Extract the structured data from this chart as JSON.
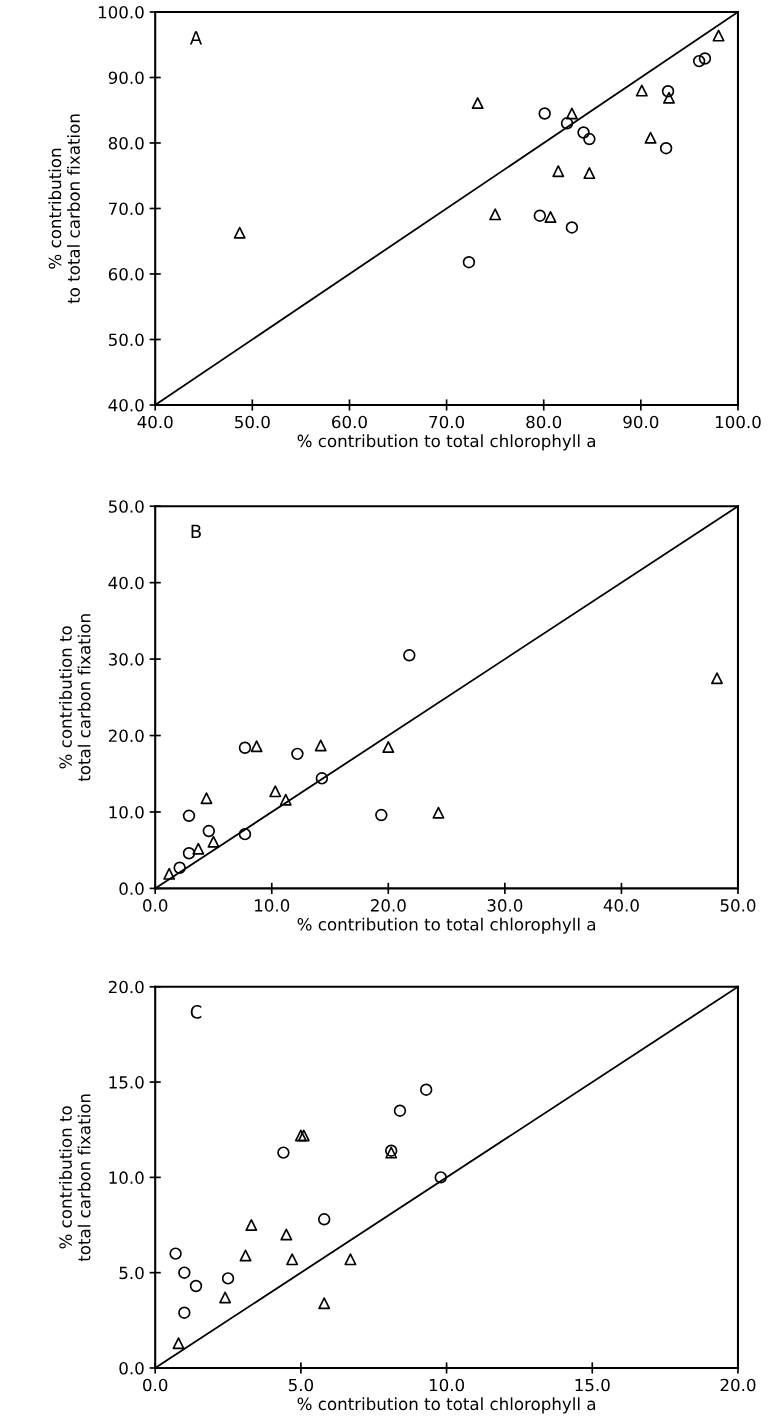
{
  "chart_data": [
    {
      "type": "scatter",
      "xlabel": "% contribution to total chlorophyll a",
      "ylabel": "% contribution\nto total carbon fixation",
      "annotations": [
        "A"
      ],
      "grid": false,
      "xlim": [
        40,
        100
      ],
      "ylim": [
        40,
        100
      ],
      "xticks": [
        {
          "value": 40,
          "label": "40.0"
        },
        {
          "value": 50,
          "label": "50.0"
        },
        {
          "value": 60,
          "label": "60.0"
        },
        {
          "value": 70,
          "label": "70.0"
        },
        {
          "value": 80,
          "label": "80.0"
        },
        {
          "value": 90,
          "label": "90.0"
        },
        {
          "value": 100,
          "label": "100.0"
        }
      ],
      "yticks": [
        {
          "value": 40,
          "label": "40.0"
        },
        {
          "value": 50,
          "label": "50.0"
        },
        {
          "value": 60,
          "label": "60.0"
        },
        {
          "value": 70,
          "label": "70.0"
        },
        {
          "value": 80,
          "label": "80.0"
        },
        {
          "value": 90,
          "label": "90.0"
        },
        {
          "value": 100,
          "label": "100.0"
        }
      ],
      "series": [
        {
          "marker": "circle",
          "color": "#000000",
          "x": [
            80.1,
            82.4,
            84.1,
            84.7,
            92.8,
            92.6,
            96.0,
            96.6,
            79.6,
            82.9,
            72.3
          ],
          "values": [
            84.5,
            83.0,
            81.6,
            80.6,
            87.9,
            79.2,
            92.5,
            92.9,
            68.9,
            67.1,
            61.8
          ]
        },
        {
          "marker": "triangle",
          "color": "#000000",
          "x": [
            73.2,
            82.9,
            90.1,
            92.9,
            98.0,
            91.0,
            81.5,
            84.7,
            75.0,
            80.7,
            48.7
          ],
          "values": [
            86.1,
            84.5,
            88.0,
            86.9,
            96.4,
            80.8,
            75.7,
            75.4,
            69.1,
            68.7,
            66.3
          ]
        },
        {
          "type": "line",
          "line_style": "solid",
          "color": "#000000",
          "x": [
            40,
            100
          ],
          "values": [
            40,
            100
          ]
        }
      ]
    },
    {
      "type": "scatter",
      "xlabel": "% contribution to total chlorophyll a",
      "ylabel": "% contribution to\ntotal carbon fixation",
      "annotations": [
        "B"
      ],
      "grid": false,
      "xlim": [
        0,
        50
      ],
      "ylim": [
        0,
        50
      ],
      "xticks": [
        {
          "value": 0,
          "label": "0.0"
        },
        {
          "value": 10,
          "label": "10.0"
        },
        {
          "value": 20,
          "label": "20.0"
        },
        {
          "value": 30,
          "label": "30.0"
        },
        {
          "value": 40,
          "label": "40.0"
        },
        {
          "value": 50,
          "label": "50.0"
        }
      ],
      "yticks": [
        {
          "value": 0,
          "label": "0.0"
        },
        {
          "value": 10,
          "label": "10.0"
        },
        {
          "value": 20,
          "label": "20.0"
        },
        {
          "value": 30,
          "label": "30.0"
        },
        {
          "value": 40,
          "label": "40.0"
        },
        {
          "value": 50,
          "label": "50.0"
        }
      ],
      "series": [
        {
          "marker": "circle",
          "color": "#000000",
          "x": [
            21.8,
            7.7,
            12.2,
            14.3,
            2.9,
            19.4,
            4.6,
            7.7,
            2.9,
            2.1
          ],
          "values": [
            30.5,
            18.4,
            17.6,
            14.4,
            9.5,
            9.6,
            7.5,
            7.1,
            4.6,
            2.7
          ]
        },
        {
          "marker": "triangle",
          "color": "#000000",
          "x": [
            48.2,
            8.7,
            14.2,
            20.0,
            4.4,
            10.3,
            11.2,
            24.3,
            3.7,
            5.0,
            1.2
          ],
          "values": [
            27.5,
            18.6,
            18.7,
            18.5,
            11.8,
            12.7,
            11.6,
            9.9,
            5.2,
            6.1,
            1.9
          ]
        },
        {
          "type": "line",
          "line_style": "solid",
          "color": "#000000",
          "x": [
            0,
            50
          ],
          "values": [
            0,
            50
          ]
        }
      ]
    },
    {
      "type": "scatter",
      "xlabel": "% contribution to total chlorophyll a",
      "ylabel": "% contribution to\ntotal carbon fixation",
      "annotations": [
        "C"
      ],
      "grid": false,
      "xlim": [
        0,
        20
      ],
      "ylim": [
        0,
        20
      ],
      "xticks": [
        {
          "value": 0,
          "label": "0.0"
        },
        {
          "value": 5,
          "label": "5.0"
        },
        {
          "value": 10,
          "label": "10.0"
        },
        {
          "value": 15,
          "label": "15.0"
        },
        {
          "value": 20,
          "label": "20.0"
        }
      ],
      "yticks": [
        {
          "value": 0,
          "label": "0.0"
        },
        {
          "value": 5,
          "label": "5.0"
        },
        {
          "value": 10,
          "label": "10.0"
        },
        {
          "value": 15,
          "label": "15.0"
        },
        {
          "value": 20,
          "label": "20.0"
        }
      ],
      "series": [
        {
          "marker": "circle",
          "color": "#000000",
          "x": [
            9.3,
            8.4,
            4.4,
            8.1,
            9.8,
            5.8,
            0.7,
            1.0,
            1.4,
            2.5,
            1.0
          ],
          "values": [
            14.6,
            13.5,
            11.3,
            11.4,
            10.0,
            7.8,
            6.0,
            5.0,
            4.3,
            4.7,
            2.9
          ]
        },
        {
          "marker": "triangle",
          "color": "#000000",
          "x": [
            5.0,
            5.1,
            8.1,
            3.3,
            4.5,
            3.1,
            4.7,
            6.7,
            2.4,
            5.8,
            0.8
          ],
          "values": [
            12.2,
            12.2,
            11.3,
            7.5,
            7.0,
            5.9,
            5.7,
            5.7,
            3.7,
            3.4,
            1.3
          ]
        },
        {
          "type": "line",
          "line_style": "solid",
          "color": "#000000",
          "x": [
            0,
            20
          ],
          "values": [
            0,
            20
          ]
        }
      ]
    }
  ]
}
